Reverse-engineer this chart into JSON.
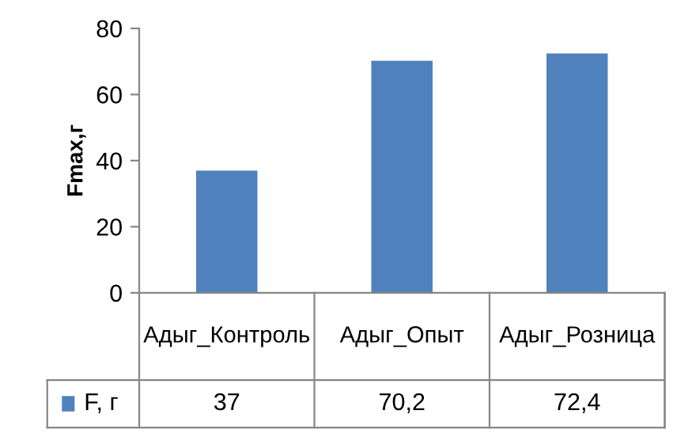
{
  "chart_data": {
    "type": "bar",
    "ylabel": "Fmax,г",
    "categories": [
      "Адыг_Контроль",
      "Адыг_Опыт",
      "Адыг_Розница"
    ],
    "series": [
      {
        "name": "F, г",
        "color": "#4f81bd",
        "values": [
          37,
          70.2,
          72.4
        ],
        "value_labels": [
          "37",
          "70,2",
          "72,4"
        ]
      }
    ],
    "ylim": [
      0,
      80
    ],
    "yticks": [
      0,
      20,
      40,
      60,
      80
    ],
    "grid": false,
    "legend": "bottom"
  }
}
